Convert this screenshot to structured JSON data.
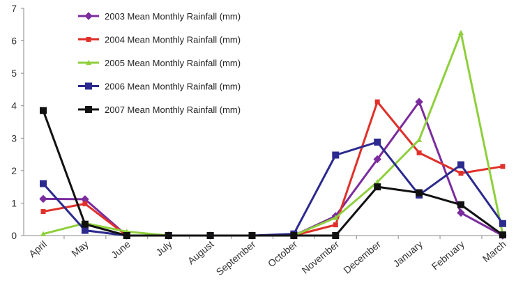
{
  "chart_data": {
    "type": "line",
    "title": "",
    "xlabel": "",
    "ylabel": "",
    "categories": [
      "April",
      "May",
      "June",
      "July",
      "August",
      "September",
      "October",
      "November",
      "December",
      "January",
      "February",
      "March"
    ],
    "ylim": [
      0,
      7
    ],
    "yticks": [
      0,
      1,
      2,
      3,
      4,
      5,
      6,
      7
    ],
    "grid": false,
    "legend": "top-left",
    "series": [
      {
        "name": "2003 Mean Monthly Rainfall (mm)",
        "color": "#7b2c9e",
        "marker": "diamond",
        "values": [
          1.13,
          1.12,
          0.0,
          0.0,
          0.0,
          0.0,
          0.0,
          0.6,
          2.35,
          4.12,
          0.7,
          0.0
        ]
      },
      {
        "name": "2004 Mean Monthly Rainfall (mm)",
        "color": "#e0302a",
        "marker": "square",
        "values": [
          0.74,
          0.98,
          0.0,
          0.0,
          0.0,
          0.0,
          0.0,
          0.33,
          4.12,
          2.55,
          1.92,
          2.13
        ]
      },
      {
        "name": "2005 Mean Monthly Rainfall (mm)",
        "color": "#8fcf3c",
        "marker": "triangle",
        "values": [
          0.05,
          0.38,
          0.12,
          0.0,
          0.0,
          0.0,
          0.0,
          0.55,
          1.65,
          2.95,
          6.25,
          0.05
        ]
      },
      {
        "name": "2006 Mean Monthly Rainfall (mm)",
        "color": "#2c2a8f",
        "marker": "square",
        "values": [
          1.6,
          0.16,
          0.0,
          0.0,
          0.0,
          0.0,
          0.05,
          2.48,
          2.88,
          1.25,
          2.18,
          0.37
        ]
      },
      {
        "name": "2007 Mean Monthly Rainfall (mm)",
        "color": "#111111",
        "marker": "square",
        "values": [
          3.85,
          0.35,
          0.0,
          0.0,
          0.0,
          0.0,
          0.0,
          0.0,
          1.5,
          1.32,
          0.95,
          0.02
        ]
      }
    ]
  }
}
